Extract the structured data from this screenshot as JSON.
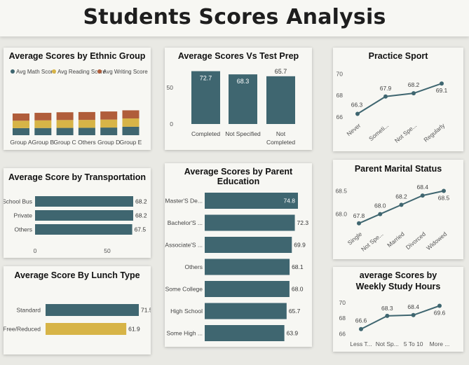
{
  "page": {
    "title": "Students Scores Analysis"
  },
  "colors": {
    "teal": "#3f6670",
    "gold": "#d7b447",
    "rust": "#b05d3a",
    "line": "#3f6670"
  },
  "chart_data": [
    {
      "id": "ethnic",
      "type": "bar",
      "stacked": true,
      "title": "Average Scores by Ethnic Group",
      "legend": [
        "Avg Math Score",
        "Avg Reading Score",
        "Avg Writing Score"
      ],
      "categories": [
        "Group A",
        "Group B",
        "Group C",
        "Others",
        "Group D",
        "Group E"
      ],
      "series": [
        {
          "name": "Avg Math Score",
          "values": [
            62,
            63,
            64,
            65,
            67,
            74
          ]
        },
        {
          "name": "Avg Reading Score",
          "values": [
            65,
            67,
            69,
            69,
            70,
            73
          ]
        },
        {
          "name": "Avg Writing Score",
          "values": [
            63,
            66,
            68,
            69,
            71,
            71
          ]
        }
      ]
    },
    {
      "id": "testprep",
      "type": "bar",
      "title": "Average Scores Vs Test Prep",
      "categories": [
        "Completed",
        "Not Specified",
        "Not Completed"
      ],
      "values": [
        72.7,
        68.3,
        65.7
      ],
      "value_labels": [
        "72.7",
        "68.3",
        "65.7"
      ],
      "yticks": [
        "50",
        "0"
      ],
      "ylim": [
        0,
        80
      ]
    },
    {
      "id": "sport",
      "type": "line",
      "title": "Practice Sport",
      "categories": [
        "Never",
        "Someti...",
        "Not Spe...",
        "Regularly"
      ],
      "values": [
        66.3,
        67.9,
        68.2,
        69.1
      ],
      "value_labels": [
        "66.3",
        "67.9",
        "68.2",
        "69.1"
      ],
      "yticks": [
        "70",
        "68",
        "66"
      ],
      "ylim": [
        65.3,
        70.6
      ]
    },
    {
      "id": "transport",
      "type": "bar",
      "orientation": "horizontal",
      "title": "Average Score by Transportation",
      "categories": [
        "School Bus",
        "Private",
        "Others"
      ],
      "values": [
        68.2,
        68.2,
        67.5
      ],
      "value_labels": [
        "68.2",
        "68.2",
        "67.5"
      ],
      "xticks": [
        "0",
        "50"
      ],
      "xlim": [
        0,
        68.2
      ]
    },
    {
      "id": "parentedu",
      "type": "bar",
      "orientation": "horizontal",
      "title": "Average Scores by Parent Education",
      "categories": [
        "Master'S De...",
        "Bachelor'S ...",
        "Associate'S ...",
        "Others",
        "Some College",
        "High School",
        "Some High ..."
      ],
      "values": [
        74.8,
        72.3,
        69.9,
        68.1,
        68.0,
        65.7,
        63.9
      ],
      "value_labels": [
        "74.8",
        "72.3",
        "69.9",
        "68.1",
        "68.0",
        "65.7",
        "63.9"
      ],
      "xlim": [
        0,
        74.8
      ]
    },
    {
      "id": "marital",
      "type": "line",
      "title": "Parent Marital Status",
      "categories": [
        "Single",
        "Not Spe...",
        "Married",
        "Divorced",
        "Widowed"
      ],
      "values": [
        67.8,
        68.0,
        68.2,
        68.4,
        68.5
      ],
      "value_labels": [
        "67.8",
        "68.0",
        "68.2",
        "68.4",
        "68.5"
      ],
      "yticks": [
        "68.5",
        "68.0"
      ],
      "ylim": [
        67.6,
        68.72
      ]
    },
    {
      "id": "lunch",
      "type": "bar",
      "orientation": "horizontal",
      "title": "Average Score By Lunch Type",
      "categories": [
        "Standard",
        "Free/Reduced"
      ],
      "values": [
        71.5,
        61.9
      ],
      "value_labels": [
        "71.5",
        "61.9"
      ],
      "xlim": [
        0,
        71.5
      ]
    },
    {
      "id": "study",
      "type": "line",
      "title": "average Scores by Weekly Study Hours",
      "categories": [
        "Less T...",
        "Not Sp...",
        "5 To 10",
        "More ..."
      ],
      "values": [
        66.6,
        68.3,
        68.4,
        69.6
      ],
      "value_labels": [
        "66.6",
        "68.3",
        "68.4",
        "69.6"
      ],
      "yticks": [
        "70",
        "68",
        "66"
      ],
      "ylim": [
        65.4,
        71.0
      ]
    }
  ]
}
